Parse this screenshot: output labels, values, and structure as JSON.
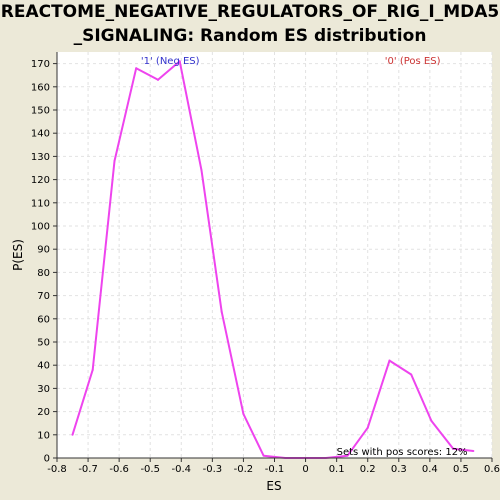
{
  "chart_data": {
    "type": "line",
    "title_line1": "REACTOME_NEGATIVE_REGULATORS_OF_RIG_I_MDA5",
    "title_line2": "_SIGNALING: Random ES distribution",
    "xlabel": "ES",
    "ylabel": "P(ES)",
    "xlim": [
      -0.8,
      0.6
    ],
    "ylim": [
      0,
      175
    ],
    "xticks": [
      -0.8,
      -0.7,
      -0.6,
      -0.5,
      -0.4,
      -0.3,
      -0.2,
      -0.1,
      0.0,
      0.1,
      0.2,
      0.3,
      0.4,
      0.5,
      0.6
    ],
    "xtick_labels": [
      "-0.8",
      "-0.7",
      "-0.6",
      "-0.5",
      "-0.4",
      "-0.3",
      "-0.2",
      "-0.1",
      "0",
      "0.1",
      "0.2",
      "0.3",
      "0.4",
      "0.5",
      "0.6"
    ],
    "yticks": [
      0,
      10,
      20,
      30,
      40,
      50,
      60,
      70,
      80,
      90,
      100,
      110,
      120,
      130,
      140,
      150,
      160,
      170
    ],
    "grid": true,
    "series": [
      {
        "color": "#ee44ee",
        "x": [
          -0.75,
          -0.685,
          -0.615,
          -0.545,
          -0.475,
          -0.405,
          -0.335,
          -0.27,
          -0.2,
          -0.135,
          -0.065,
          0.0,
          0.065,
          0.135,
          0.2,
          0.27,
          0.34,
          0.405,
          0.475,
          0.54
        ],
        "y": [
          10,
          38,
          128,
          168,
          163,
          171,
          124,
          63,
          19,
          1,
          0,
          0,
          0,
          1,
          13,
          42,
          36,
          16,
          4,
          3
        ]
      }
    ],
    "annotations": [
      {
        "text": "'1' (Neg ES)",
        "x": -0.53,
        "y": 175,
        "color": "#3333cc"
      },
      {
        "text": "'0' (Pos ES)",
        "x": 0.255,
        "y": 175,
        "color": "#cc3333"
      },
      {
        "text": "Sets with pos scores: 12%",
        "x": 0.1,
        "y": 0,
        "color": "#000000"
      }
    ]
  }
}
